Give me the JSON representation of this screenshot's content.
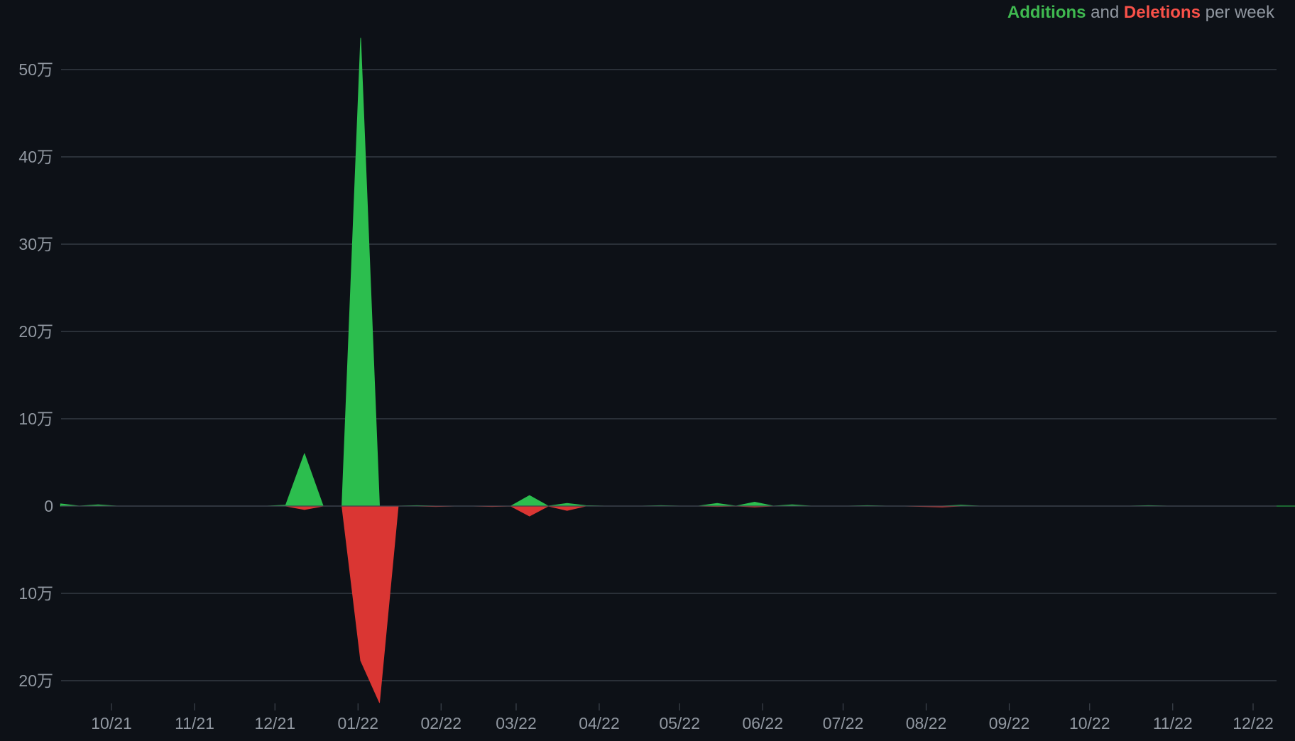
{
  "legend": {
    "additions": "Additions",
    "and": " and ",
    "deletions": "Deletions",
    "suffix": " per week"
  },
  "colors": {
    "additions": "#2cbe4e",
    "deletions": "#da3633",
    "background": "#0d1117",
    "grid": "#3d444d",
    "text": "#9198a1"
  },
  "chart_data": {
    "type": "area",
    "ylim": [
      -230000,
      540000
    ],
    "grid": true,
    "legend_position": "top-right",
    "yticks": [
      {
        "value": 500000,
        "label": "50万"
      },
      {
        "value": 400000,
        "label": "40万"
      },
      {
        "value": 300000,
        "label": "30万"
      },
      {
        "value": 200000,
        "label": "20万"
      },
      {
        "value": 100000,
        "label": "10万"
      },
      {
        "value": 0,
        "label": "0"
      },
      {
        "value": -100000,
        "label": "10万"
      },
      {
        "value": -200000,
        "label": "20万"
      }
    ],
    "xticks": [
      {
        "date": "2021-10-01",
        "label": "10/21"
      },
      {
        "date": "2021-11-01",
        "label": "11/21"
      },
      {
        "date": "2021-12-01",
        "label": "12/21"
      },
      {
        "date": "2022-01-01",
        "label": "01/22"
      },
      {
        "date": "2022-02-01",
        "label": "02/22"
      },
      {
        "date": "2022-03-01",
        "label": "03/22"
      },
      {
        "date": "2022-04-01",
        "label": "04/22"
      },
      {
        "date": "2022-05-01",
        "label": "05/22"
      },
      {
        "date": "2022-06-01",
        "label": "06/22"
      },
      {
        "date": "2022-07-01",
        "label": "07/22"
      },
      {
        "date": "2022-08-01",
        "label": "08/22"
      },
      {
        "date": "2022-09-01",
        "label": "09/22"
      },
      {
        "date": "2022-10-01",
        "label": "10/22"
      },
      {
        "date": "2022-11-01",
        "label": "11/22"
      },
      {
        "date": "2022-12-01",
        "label": "12/22"
      }
    ],
    "weeks": [
      "2021-09-12",
      "2021-09-19",
      "2021-09-26",
      "2021-10-03",
      "2021-10-10",
      "2021-10-17",
      "2021-10-24",
      "2021-10-31",
      "2021-11-07",
      "2021-11-14",
      "2021-11-21",
      "2021-11-28",
      "2021-12-05",
      "2021-12-12",
      "2021-12-19",
      "2021-12-26",
      "2022-01-02",
      "2022-01-09",
      "2022-01-16",
      "2022-01-23",
      "2022-01-30",
      "2022-02-06",
      "2022-02-13",
      "2022-02-20",
      "2022-02-27",
      "2022-03-06",
      "2022-03-13",
      "2022-03-20",
      "2022-03-27",
      "2022-04-03",
      "2022-04-10",
      "2022-04-17",
      "2022-04-24",
      "2022-05-01",
      "2022-05-08",
      "2022-05-15",
      "2022-05-22",
      "2022-05-29",
      "2022-06-05",
      "2022-06-12",
      "2022-06-19",
      "2022-06-26",
      "2022-07-03",
      "2022-07-10",
      "2022-07-17",
      "2022-07-24",
      "2022-07-31",
      "2022-08-07",
      "2022-08-14",
      "2022-08-21",
      "2022-08-28",
      "2022-09-04",
      "2022-09-11",
      "2022-09-18",
      "2022-09-25",
      "2022-10-02",
      "2022-10-09",
      "2022-10-16",
      "2022-10-23",
      "2022-10-30",
      "2022-11-06",
      "2022-11-13",
      "2022-11-20",
      "2022-11-27",
      "2022-12-04",
      "2022-12-11",
      "2022-12-18",
      "2022-12-25"
    ],
    "series": [
      {
        "name": "Additions",
        "values": [
          2500,
          0,
          1500,
          0,
          0,
          0,
          0,
          0,
          0,
          0,
          0,
          0,
          1000,
          60000,
          0,
          0,
          536000,
          0,
          0,
          500,
          0,
          0,
          0,
          0,
          0,
          12000,
          0,
          3000,
          500,
          0,
          0,
          0,
          500,
          0,
          0,
          3000,
          0,
          4500,
          0,
          1500,
          0,
          0,
          0,
          500,
          0,
          0,
          0,
          0,
          1000,
          0,
          0,
          0,
          0,
          0,
          0,
          0,
          0,
          0,
          500,
          0,
          0,
          0,
          0,
          0,
          0,
          0,
          0,
          0
        ],
        "values_note": ""
      },
      {
        "name": "Deletions",
        "values": [
          0,
          0,
          0,
          0,
          0,
          0,
          0,
          0,
          0,
          0,
          0,
          0,
          0,
          -4000,
          0,
          0,
          -177000,
          -225000,
          0,
          0,
          -500,
          0,
          0,
          -500,
          0,
          -11500,
          0,
          -5000,
          0,
          0,
          0,
          0,
          0,
          0,
          0,
          -500,
          0,
          -1000,
          0,
          0,
          0,
          0,
          0,
          0,
          0,
          0,
          -500,
          -1000,
          0,
          0,
          0,
          0,
          0,
          0,
          0,
          0,
          0,
          0,
          0,
          0,
          0,
          0,
          0,
          0,
          0,
          0,
          0,
          0
        ]
      }
    ]
  }
}
